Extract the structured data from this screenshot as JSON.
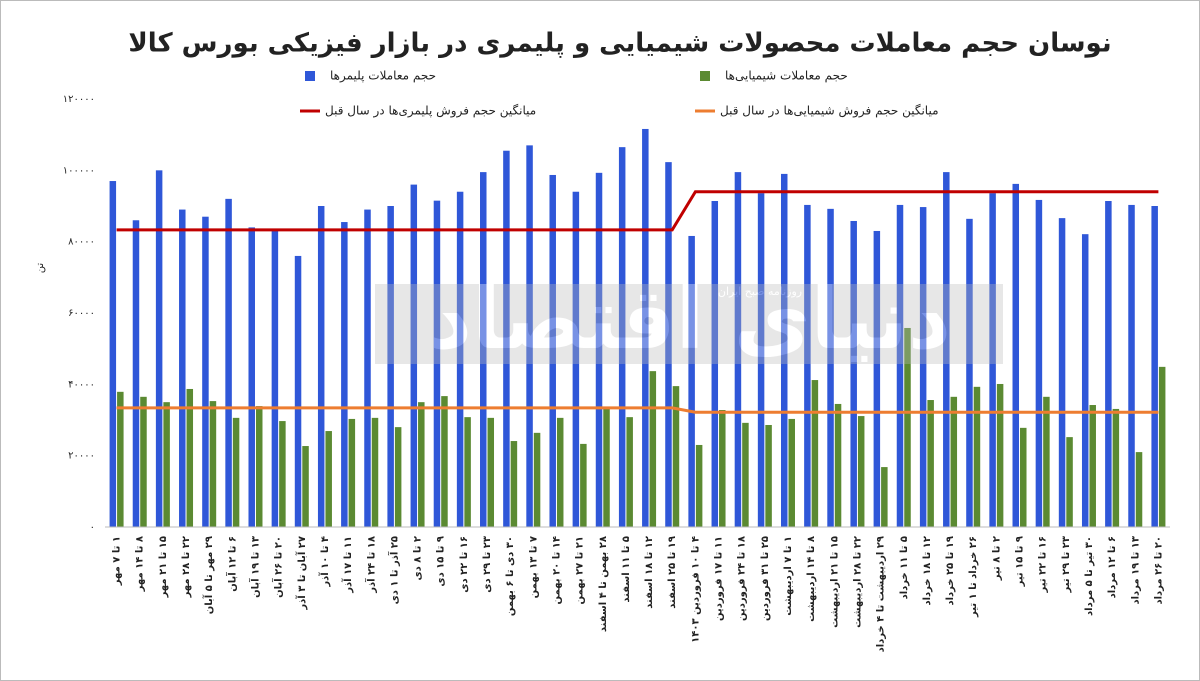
{
  "chart_data": {
    "type": "bar",
    "title": "نوسان حجم معاملات محصولات شیمیایی و پلیمری در بازار فیزیکی بورس کالا",
    "y_label": "تن",
    "watermark": "دنیای اقتصاد",
    "watermark_subtitle": "روزنامه صبح ایران",
    "categories": [
      "۱ تا ۷ مهر",
      "۸ تا ۱۴ مهر",
      "۱۵ تا ۲۱ مهر",
      "۲۲ تا ۲۸ مهر",
      "۲۹ مهر تا ۵ آبان",
      "۶ تا ۱۲ آبان",
      "۱۳ تا ۱۹ آبان",
      "۲۰ تا ۲۶ آبان",
      "۲۷ آبان تا ۳ آذر",
      "۴ تا ۱۰ آذر",
      "۱۱ تا ۱۷ آذر",
      "۱۸ تا ۲۴ آذر",
      "۲۵ آذر تا ۱ دی",
      "۲ تا ۸ دی",
      "۹ تا ۱۵ دی",
      "۱۶ تا ۲۲ دی",
      "۲۳ تا ۲۹ دی",
      "۳۰ دی تا ۶ بهمن",
      "۷ تا ۱۳ بهمن",
      "۱۴ تا ۲۰ بهمن",
      "۲۱ تا ۲۷ بهمن",
      "۲۸ بهمن تا ۴ اسفند",
      "۵ تا ۱۱ اسفند",
      "۱۲ تا ۱۸ اسفند",
      "۱۹ تا ۲۵ اسفند",
      "۴ تا ۱۰ فروردین ۱۴۰۳",
      "۱۱ تا ۱۷ فروردین",
      "۱۸ تا ۲۴ فروردین",
      "۲۵ تا ۳۱ فروردین",
      "۱ تا ۷ اردیبهشت",
      "۸ تا ۱۴ اردیبهشت",
      "۱۵ تا ۲۱ اردیبهشت",
      "۲۲ تا ۲۸ اردیبهشت",
      "۲۹ اردیبهشت تا ۴ خرداد",
      "۵ تا ۱۱ خرداد",
      "۱۲ تا ۱۸ خرداد",
      "۱۹ تا ۲۵ خرداد",
      "۲۶ خرداد تا ۱ تیر",
      "۲ تا ۸ تیر",
      "۹ تا ۱۵ تیر",
      "۱۶ تا ۲۲ تیر",
      "۲۳ تا ۲۹ تیر",
      "۳۰ تیر تا ۵ مرداد",
      "۶ تا ۱۲ مرداد",
      "۱۳ تا ۱۹ مرداد",
      "۲۰ تا ۲۶ مرداد"
    ],
    "series": [
      {
        "name": "حجم معاملات پلیمرها",
        "color": "#2f57d8",
        "kind": "bar",
        "values": [
          97000,
          86000,
          100000,
          89000,
          87000,
          92000,
          84000,
          83000,
          76000,
          90000,
          85500,
          89000,
          90000,
          96000,
          91500,
          94000,
          99500,
          105500,
          107000,
          98700,
          94000,
          99300,
          106500,
          111600,
          102300,
          81600,
          91400,
          99500,
          93600,
          99000,
          90300,
          89200,
          85800,
          83000,
          90300,
          89700,
          99500,
          86400,
          93600,
          96200,
          91700,
          86600,
          82100,
          91400,
          90300,
          90000
        ]
      },
      {
        "name": "حجم معاملات شیمیایی‌ها",
        "color": "#5b8a32",
        "kind": "bar",
        "values": [
          37900,
          36500,
          35000,
          38700,
          35300,
          30600,
          33900,
          29700,
          22700,
          26900,
          30300,
          30600,
          28000,
          35000,
          36700,
          30800,
          30600,
          24100,
          26400,
          30600,
          23300,
          33400,
          30800,
          43700,
          39500,
          23000,
          32800,
          29200,
          28600,
          30300,
          41200,
          34500,
          31100,
          16800,
          55800,
          35600,
          36500,
          39300,
          40100,
          27800,
          36500,
          25200,
          34200,
          33100,
          21000,
          44900
        ]
      },
      {
        "name": "میانگین حجم فروش پلیمری‌ها در سال قبل",
        "color": "#c00000",
        "kind": "line",
        "values": [
          83300,
          83300,
          83300,
          83300,
          83300,
          83300,
          83300,
          83300,
          83300,
          83300,
          83300,
          83300,
          83300,
          83300,
          83300,
          83300,
          83300,
          83300,
          83300,
          83300,
          83300,
          83300,
          83300,
          83300,
          83300,
          94000,
          94000,
          94000,
          94000,
          94000,
          94000,
          94000,
          94000,
          94000,
          94000,
          94000,
          94000,
          94000,
          94000,
          94000,
          94000,
          94000,
          94000,
          94000,
          94000,
          94000
        ]
      },
      {
        "name": "میانگین حجم فروش شیمیایی‌ها در سال قبل",
        "color": "#ed7d31",
        "kind": "line",
        "values": [
          33400,
          33400,
          33400,
          33400,
          33400,
          33400,
          33400,
          33400,
          33400,
          33400,
          33400,
          33400,
          33400,
          33400,
          33400,
          33400,
          33400,
          33400,
          33400,
          33400,
          33400,
          33400,
          33400,
          33400,
          33400,
          32200,
          32200,
          32200,
          32200,
          32200,
          32200,
          32200,
          32200,
          32200,
          32200,
          32200,
          32200,
          32200,
          32200,
          32200,
          32200,
          32200,
          32200,
          32200,
          32200,
          32200
        ]
      }
    ],
    "ylim": [
      0,
      120000
    ],
    "yticks": [
      {
        "value": 0,
        "label": "۰"
      },
      {
        "value": 20000,
        "label": "۲۰۰۰۰"
      },
      {
        "value": 40000,
        "label": "۴۰۰۰۰"
      },
      {
        "value": 60000,
        "label": "۶۰۰۰۰"
      },
      {
        "value": 80000,
        "label": "۸۰۰۰۰"
      },
      {
        "value": 100000,
        "label": "۱۰۰۰۰۰"
      },
      {
        "value": 120000,
        "label": "۱۲۰۰۰۰"
      }
    ],
    "grid": false,
    "legend": "top"
  }
}
